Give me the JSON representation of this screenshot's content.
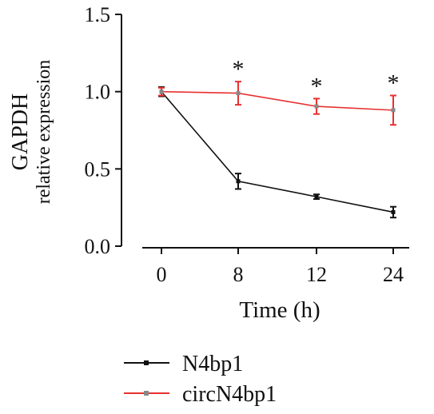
{
  "chart_data": {
    "type": "line",
    "x": [
      0,
      8,
      12,
      24
    ],
    "xticks": [
      "0",
      "8",
      "12",
      "24"
    ],
    "ylim": [
      0,
      1.5
    ],
    "yticks": [
      "0.0",
      "0.5",
      "1.0",
      "1.5"
    ],
    "xlabel": "Time (h)",
    "ylabel_line1": "GAPDH",
    "ylabel_line2": "relative expression",
    "series": [
      {
        "name": "N4bp1",
        "color": "#111111",
        "values": [
          1.0,
          0.42,
          0.32,
          0.22
        ],
        "errors": [
          0.03,
          0.05,
          0.015,
          0.035
        ]
      },
      {
        "name": "circN4bp1",
        "color": "#e8312f",
        "values": [
          1.0,
          0.99,
          0.905,
          0.88
        ],
        "errors": [
          0.025,
          0.075,
          0.05,
          0.095
        ]
      }
    ],
    "annotations": [
      {
        "x": 8,
        "text": "*"
      },
      {
        "x": 12,
        "text": "*"
      },
      {
        "x": 24,
        "text": "*"
      }
    ],
    "legend_position": "bottom-left",
    "grid": false
  }
}
